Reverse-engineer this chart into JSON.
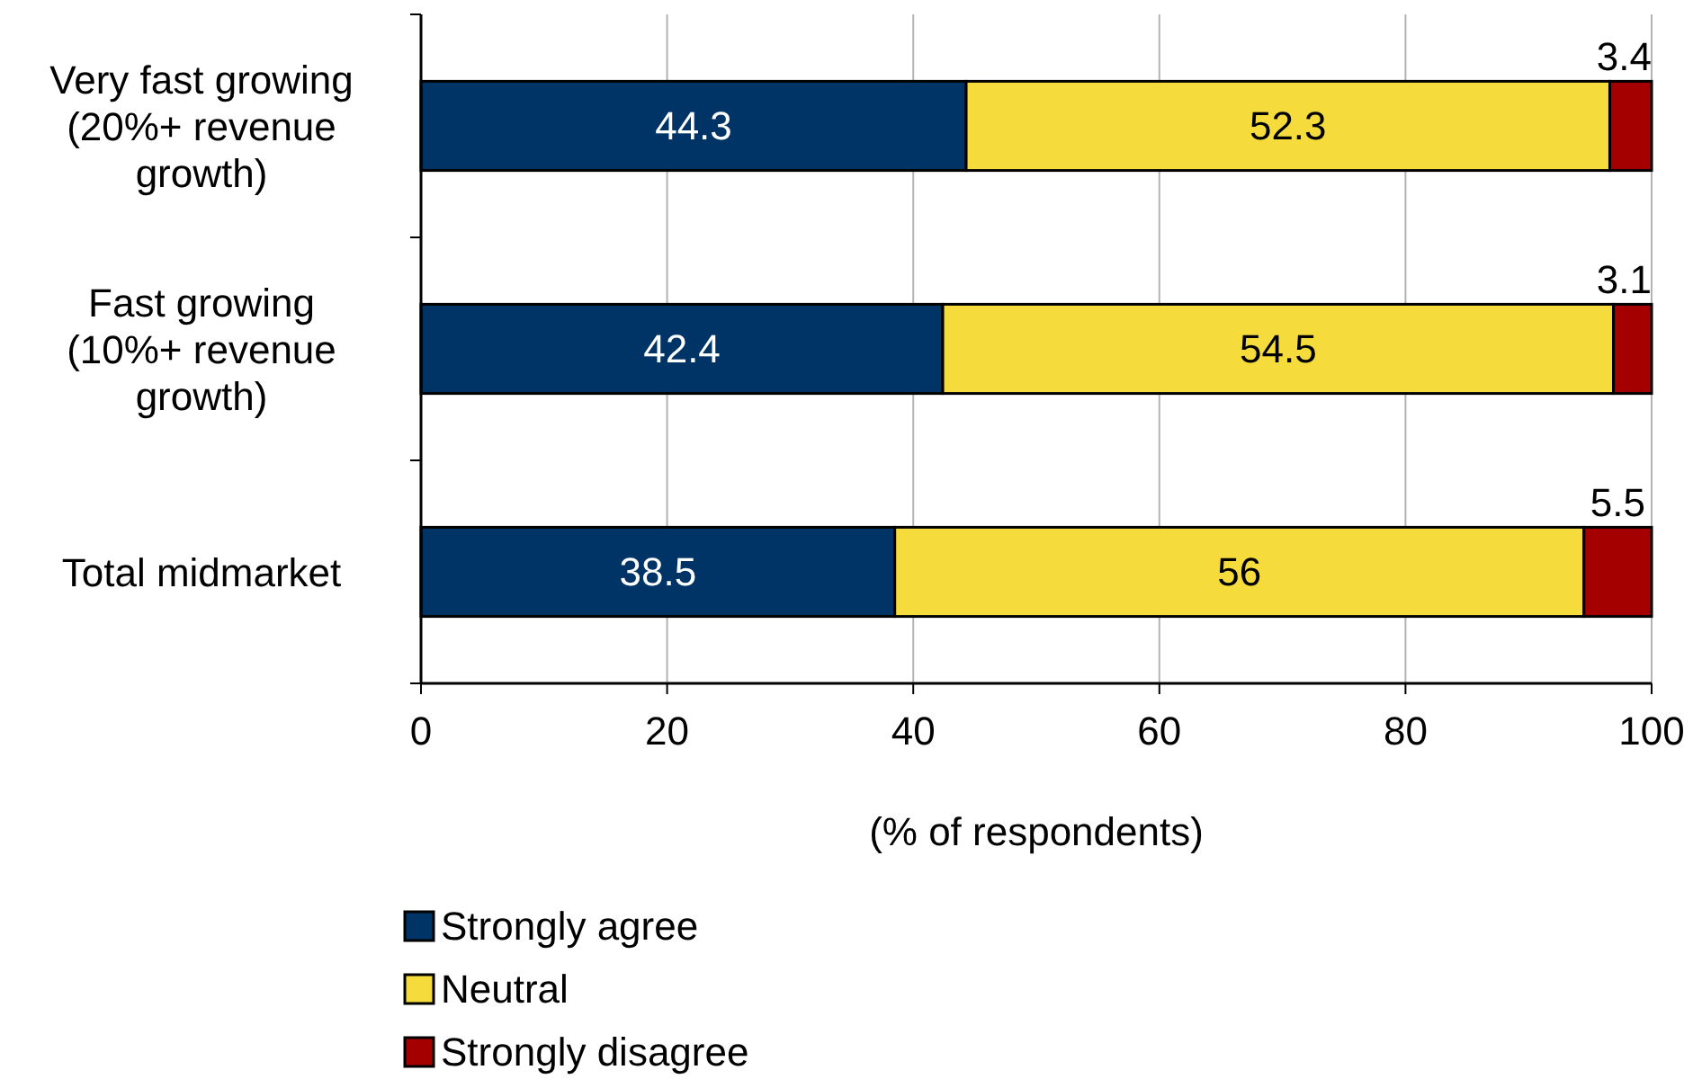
{
  "chart_data": {
    "type": "bar",
    "orientation": "horizontal",
    "stacked": true,
    "categories": [
      "Very fast growing (20%+ revenue growth)",
      "Fast growing (10%+ revenue growth)",
      "Total midmarket"
    ],
    "series": [
      {
        "name": "Strongly agree",
        "color": "#003366",
        "values": [
          44.3,
          42.4,
          38.5
        ]
      },
      {
        "name": "Neutral",
        "color": "#f5dc3c",
        "values": [
          52.3,
          54.5,
          56
        ]
      },
      {
        "name": "Strongly disagree",
        "color": "#a50000",
        "values": [
          3.4,
          3.1,
          5.5
        ]
      }
    ],
    "xlim": [
      0,
      100
    ],
    "xticks": [
      0,
      20,
      40,
      60,
      80,
      100
    ],
    "xlabel": "(% of respondents)",
    "grid": "x",
    "legend": "bottom left",
    "data_labels": true
  }
}
